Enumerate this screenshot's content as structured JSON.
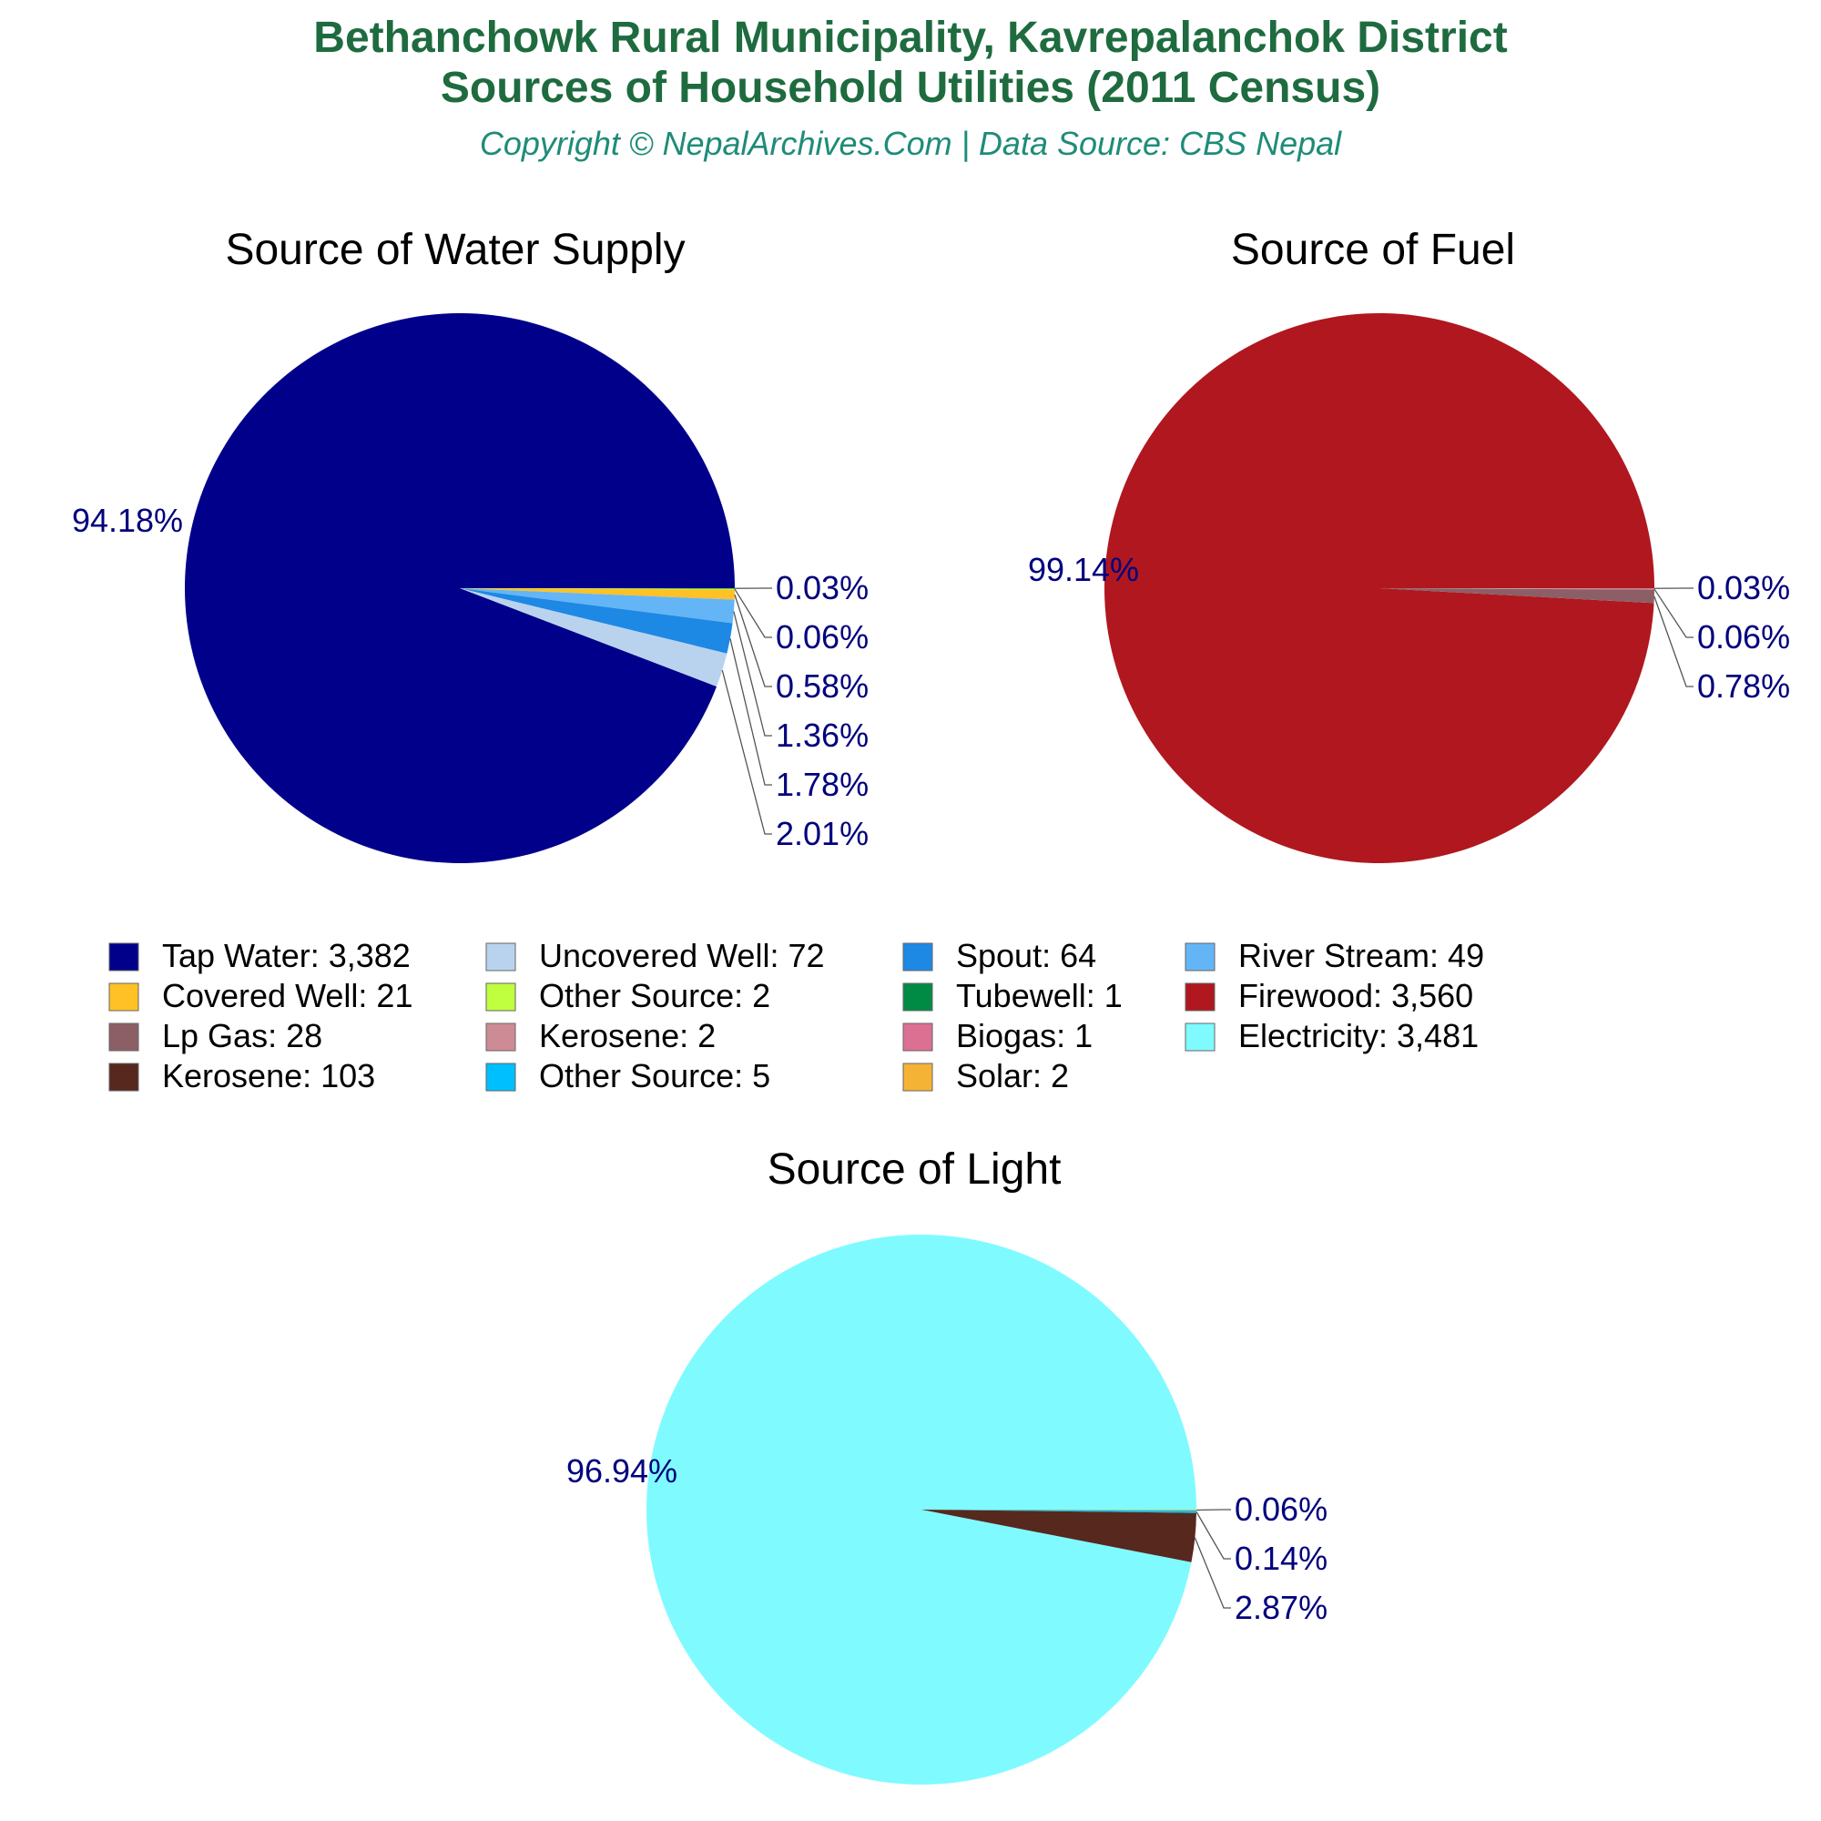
{
  "header": {
    "title_line1": "Bethanchowk Rural Municipality, Kavrepalanchok District",
    "title_line2": "Sources of Household Utilities (2011 Census)",
    "subtitle": "Copyright © NepalArchives.Com | Data Source: CBS Nepal"
  },
  "colors": {
    "title": "#1e6b3f",
    "subtitle": "#1e8c78",
    "pct_label": "#00007d",
    "chart_title": "#000000",
    "leader_line": "#555555"
  },
  "chart_data": [
    {
      "type": "pie",
      "title": "Source of Water Supply",
      "slices": [
        {
          "label": "Tap Water",
          "value": 3382,
          "pct": "94.18%",
          "color": "#00008b"
        },
        {
          "label": "Uncovered Well",
          "value": 72,
          "pct": "2.01%",
          "color": "#b9d3ee"
        },
        {
          "label": "Spout",
          "value": 64,
          "pct": "1.78%",
          "color": "#1e88e5"
        },
        {
          "label": "River Stream",
          "value": 49,
          "pct": "1.36%",
          "color": "#64b5f6"
        },
        {
          "label": "Covered Well",
          "value": 21,
          "pct": "0.58%",
          "color": "#ffc125"
        },
        {
          "label": "Other Source",
          "value": 2,
          "pct": "0.06%",
          "color": "#bfff3f"
        },
        {
          "label": "Tubewell",
          "value": 1,
          "pct": "0.03%",
          "color": "#008b45"
        }
      ]
    },
    {
      "type": "pie",
      "title": "Source of Fuel",
      "slices": [
        {
          "label": "Firewood",
          "value": 3560,
          "pct": "99.14%",
          "color": "#b0171f"
        },
        {
          "label": "Lp Gas",
          "value": 28,
          "pct": "0.78%",
          "color": "#8b5f65"
        },
        {
          "label": "Kerosene",
          "value": 2,
          "pct": "0.06%",
          "color": "#cd8c95"
        },
        {
          "label": "Biogas",
          "value": 1,
          "pct": "0.03%",
          "color": "#db7093"
        }
      ]
    },
    {
      "type": "pie",
      "title": "Source of Light",
      "slices": [
        {
          "label": "Electricity",
          "value": 3481,
          "pct": "96.94%",
          "color": "#7ffbff"
        },
        {
          "label": "Kerosene",
          "value": 103,
          "pct": "2.87%",
          "color": "#56281e"
        },
        {
          "label": "Other Source",
          "value": 5,
          "pct": "0.14%",
          "color": "#00bfff"
        },
        {
          "label": "Solar",
          "value": 2,
          "pct": "0.06%",
          "color": "#f5b335"
        }
      ]
    }
  ],
  "legend": {
    "placement": "middle",
    "items": [
      {
        "text": "Tap Water: 3,382",
        "color": "#00008b"
      },
      {
        "text": "Uncovered Well: 72",
        "color": "#b9d3ee"
      },
      {
        "text": "Spout: 64",
        "color": "#1e88e5"
      },
      {
        "text": "River Stream: 49",
        "color": "#64b5f6"
      },
      {
        "text": "Covered Well: 21",
        "color": "#ffc125"
      },
      {
        "text": "Other Source: 2",
        "color": "#bfff3f"
      },
      {
        "text": "Tubewell: 1",
        "color": "#008b45"
      },
      {
        "text": "Firewood: 3,560",
        "color": "#b0171f"
      },
      {
        "text": "Lp Gas: 28",
        "color": "#8b5f65"
      },
      {
        "text": "Kerosene: 2",
        "color": "#cd8c95"
      },
      {
        "text": "Biogas: 1",
        "color": "#db7093"
      },
      {
        "text": "Electricity: 3,481",
        "color": "#7ffbff"
      },
      {
        "text": "Kerosene: 103",
        "color": "#56281e"
      },
      {
        "text": "Other Source: 5",
        "color": "#00bfff"
      },
      {
        "text": "Solar: 2",
        "color": "#f5b335"
      }
    ]
  }
}
